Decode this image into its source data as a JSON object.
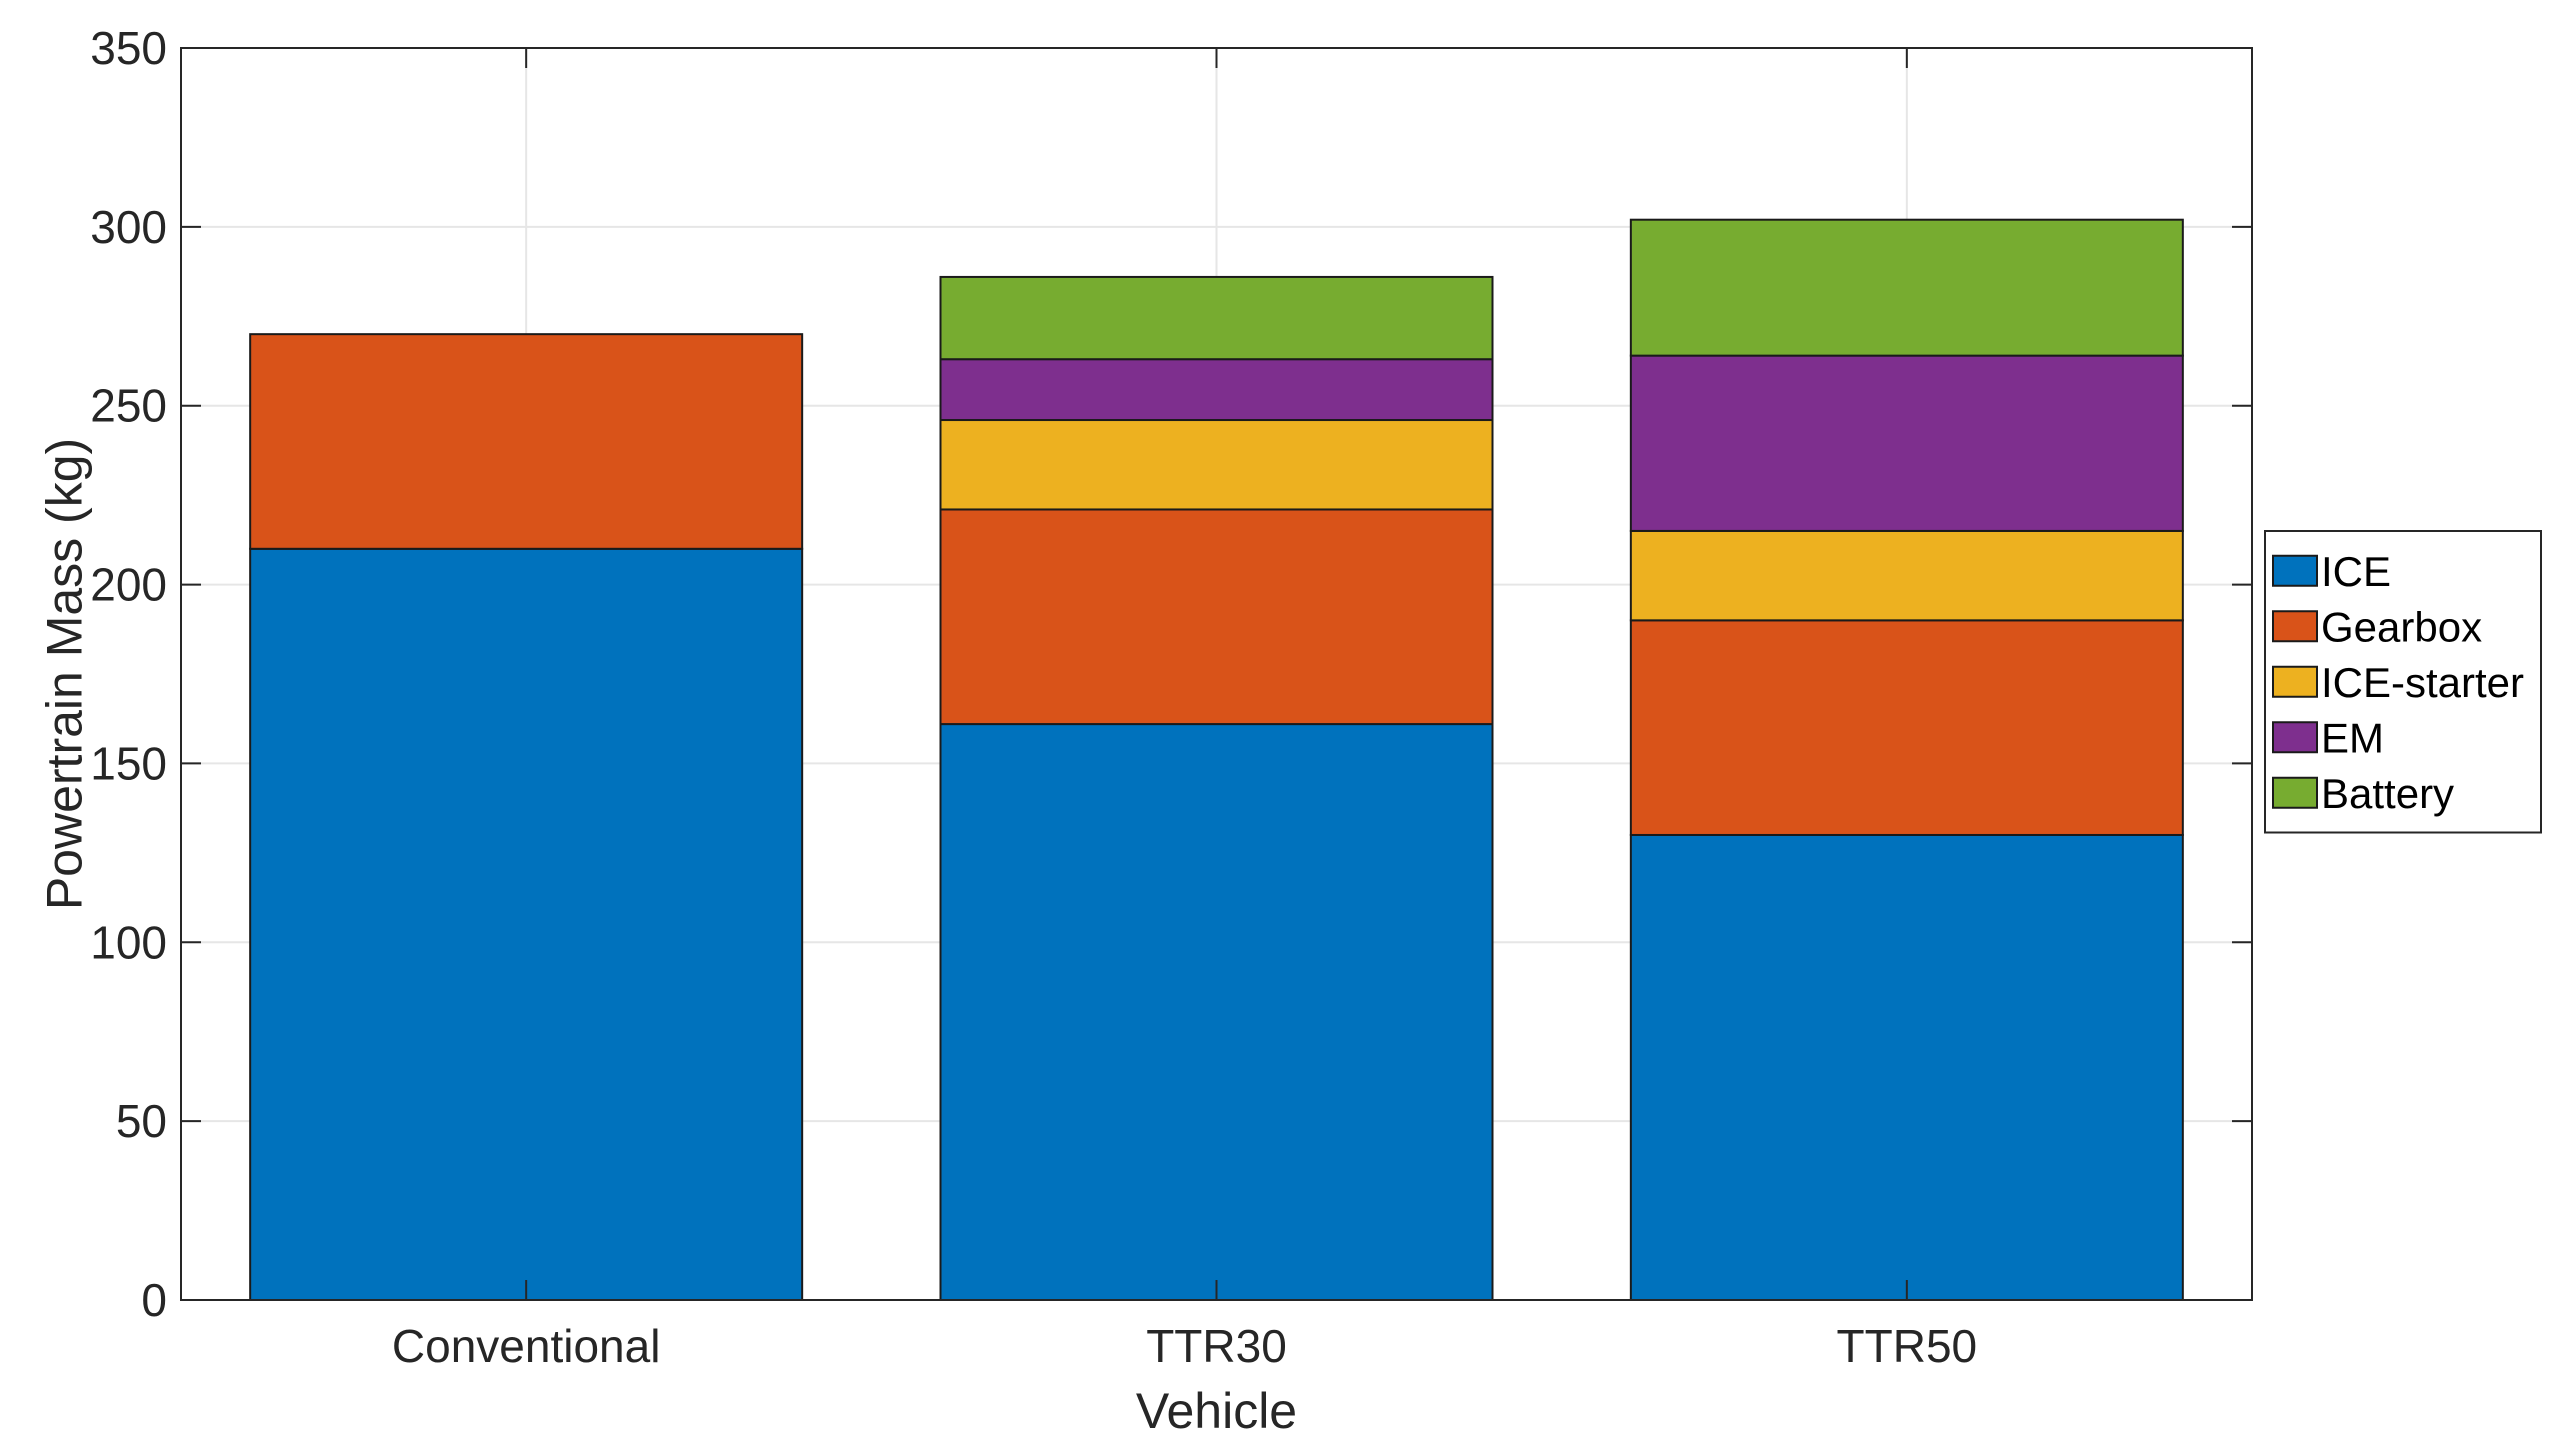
{
  "chart_data": {
    "type": "bar",
    "stacked": true,
    "title": "",
    "xlabel": "Vehicle",
    "ylabel": "Powertrain Mass (kg)",
    "ylim": [
      0,
      350
    ],
    "yticks": [
      0,
      50,
      100,
      150,
      200,
      250,
      300,
      350
    ],
    "ytick_labels": [
      "0",
      "50",
      "100",
      "150",
      "200",
      "250",
      "300",
      "350"
    ],
    "grid": true,
    "categories": [
      "Conventional",
      "TTR30",
      "TTR50"
    ],
    "series": [
      {
        "name": "ICE",
        "color": "#0072BD",
        "values": [
          210,
          161,
          130
        ]
      },
      {
        "name": "Gearbox",
        "color": "#D95319",
        "values": [
          60,
          60,
          60
        ]
      },
      {
        "name": "ICE-starter",
        "color": "#EDB120",
        "values": [
          0,
          25,
          25
        ]
      },
      {
        "name": "EM",
        "color": "#7E2F8E",
        "values": [
          0,
          17,
          49
        ]
      },
      {
        "name": "Battery",
        "color": "#77AC30",
        "values": [
          0,
          23,
          38
        ]
      }
    ],
    "legend_position": "outside-right"
  }
}
